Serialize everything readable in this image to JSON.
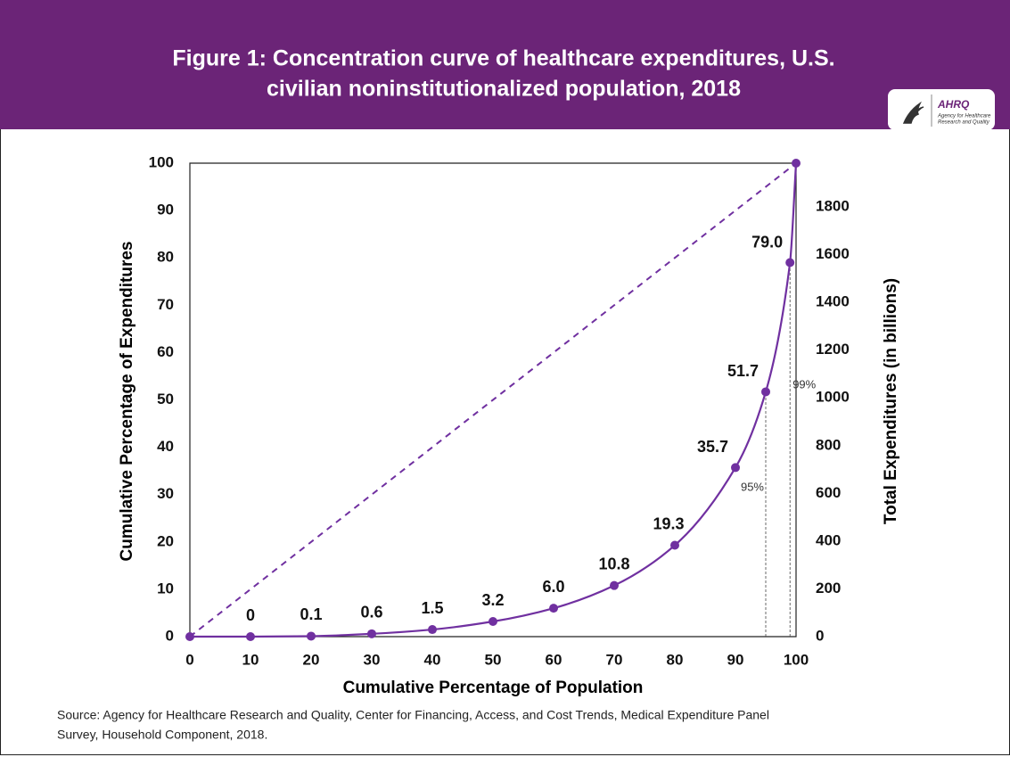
{
  "chart_data": {
    "type": "line",
    "title": [
      "Figure 1: Concentration curve of healthcare expenditures, U.S.",
      "civilian noninstitutionalized population, 2018"
    ],
    "logo": {
      "name": "AHRQ",
      "tagline": [
        "Agency for Healthcare",
        "Research and Quality"
      ]
    },
    "x_label": "Cumulative Percentage of Population",
    "y_label": "Cumulative Percentage of Expenditures",
    "y2_label": "Total Expenditures (in billions)",
    "x": [
      0,
      10,
      20,
      30,
      40,
      50,
      60,
      70,
      80,
      90,
      95,
      99,
      100
    ],
    "series": [
      {
        "color": "#7030a0",
        "values": [
          0,
          0,
          0.1,
          0.6,
          1.5,
          3.2,
          6.0,
          10.8,
          19.3,
          35.7,
          51.7,
          79.0,
          100
        ],
        "value_labels": [
          null,
          "0",
          "0.1",
          "0.6",
          "1.5",
          "3.2",
          "6.0",
          "10.8",
          "19.3",
          "35.7",
          "51.7",
          "79.0",
          null
        ]
      }
    ],
    "annotations": [
      {
        "text": "95%",
        "x": 95
      },
      {
        "text": "99%",
        "x": 99
      }
    ],
    "xlim": [
      0,
      100
    ],
    "xticks": [
      0,
      10,
      20,
      30,
      40,
      50,
      60,
      70,
      80,
      90,
      100
    ],
    "ylim": [
      0,
      100
    ],
    "yticks": [
      0,
      10,
      20,
      30,
      40,
      50,
      60,
      70,
      80,
      90,
      100
    ],
    "y2lim": [
      0,
      1983
    ],
    "y2ticks": [
      0,
      200,
      400,
      600,
      800,
      1000,
      1200,
      1400,
      1600,
      1800
    ],
    "header_color": "#6b2477",
    "source": [
      "Source: Agency for Healthcare Research and Quality, Center for Financing, Access, and Cost Trends, Medical Expenditure Panel",
      "Survey, Household Component, 2018."
    ]
  }
}
